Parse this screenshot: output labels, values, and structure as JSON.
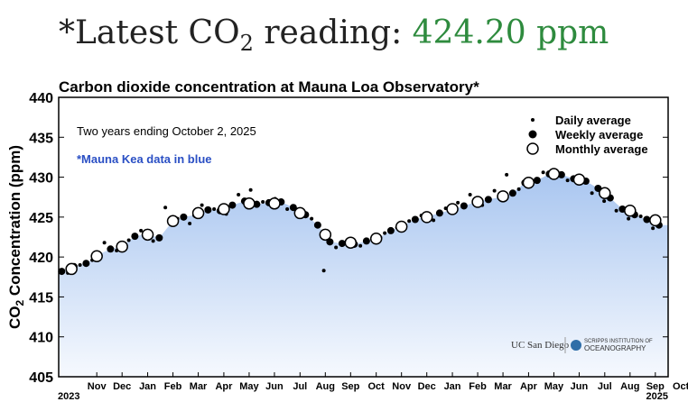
{
  "headline": {
    "prefix": "*Latest CO",
    "subscript": "2",
    "suffix": " reading: ",
    "value": "424.20 ppm"
  },
  "chart_data": {
    "type": "scatter",
    "title": "Carbon dioxide concentration at Mauna Loa Observatory*",
    "ylabel": {
      "prefix": "CO",
      "subscript": "2",
      "suffix": " Concentration (ppm)"
    },
    "annotations": [
      "Two years ending October 2, 2025",
      "*Mauna Kea data in blue"
    ],
    "logos": [
      "UC San Diego",
      "SCRIPPS INSTITUTION OF",
      "OCEANOGRAPHY"
    ],
    "year_labels": [
      "2023",
      "2025"
    ],
    "xlim": [
      2023.75,
      2025.75
    ],
    "ylim": [
      405,
      440
    ],
    "yticks": [
      405,
      410,
      415,
      420,
      425,
      430,
      435,
      440
    ],
    "xticks": [
      {
        "value": 2023.875,
        "label": "Nov"
      },
      {
        "value": 2023.958,
        "label": "Dec"
      },
      {
        "value": 2024.042,
        "label": "Jan"
      },
      {
        "value": 2024.125,
        "label": "Feb"
      },
      {
        "value": 2024.208,
        "label": "Mar"
      },
      {
        "value": 2024.292,
        "label": "Apr"
      },
      {
        "value": 2024.375,
        "label": "May"
      },
      {
        "value": 2024.458,
        "label": "Jun"
      },
      {
        "value": 2024.542,
        "label": "Jul"
      },
      {
        "value": 2024.625,
        "label": "Aug"
      },
      {
        "value": 2024.708,
        "label": "Sep"
      },
      {
        "value": 2024.792,
        "label": "Oct"
      },
      {
        "value": 2024.875,
        "label": "Nov"
      },
      {
        "value": 2024.958,
        "label": "Dec"
      },
      {
        "value": 2025.042,
        "label": "Jan"
      },
      {
        "value": 2025.125,
        "label": "Feb"
      },
      {
        "value": 2025.208,
        "label": "Mar"
      },
      {
        "value": 2025.292,
        "label": "Apr"
      },
      {
        "value": 2025.375,
        "label": "May"
      },
      {
        "value": 2025.458,
        "label": "Jun"
      },
      {
        "value": 2025.542,
        "label": "Jul"
      },
      {
        "value": 2025.625,
        "label": "Aug"
      },
      {
        "value": 2025.708,
        "label": "Sep"
      },
      {
        "value": 2025.792,
        "label": "Oct"
      }
    ],
    "area_color": "#a9c6f0",
    "legend": "top-right",
    "series": [
      {
        "name": "Daily average",
        "color": "#000000",
        "marker": "small-dot",
        "x": [
          2023.78,
          2023.82,
          2023.86,
          2023.9,
          2023.94,
          2023.98,
          2024.02,
          2024.06,
          2024.1,
          2024.14,
          2024.18,
          2024.22,
          2024.26,
          2024.3,
          2024.34,
          2024.38,
          2024.42,
          2024.46,
          2024.5,
          2024.54,
          2024.58,
          2024.62,
          2024.66,
          2024.7,
          2024.74,
          2024.78,
          2024.82,
          2024.86,
          2024.9,
          2024.94,
          2024.98,
          2025.02,
          2025.06,
          2025.1,
          2025.14,
          2025.18,
          2025.22,
          2025.26,
          2025.3,
          2025.34,
          2025.38,
          2025.42,
          2025.46,
          2025.5,
          2025.54,
          2025.58,
          2025.62,
          2025.66,
          2025.7
        ],
        "values": [
          418.0,
          419.0,
          419.6,
          421.8,
          420.8,
          422.1,
          423.3,
          422.0,
          426.2,
          424.8,
          424.2,
          426.5,
          426.0,
          425.4,
          427.8,
          428.4,
          426.9,
          427.3,
          426.0,
          425.8,
          424.8,
          418.3,
          421.2,
          421.9,
          421.4,
          422.3,
          423.0,
          423.7,
          424.5,
          425.2,
          424.6,
          426.1,
          426.8,
          427.8,
          426.5,
          428.3,
          430.3,
          428.5,
          429.1,
          430.6,
          430.8,
          429.6,
          430.2,
          428.0,
          427.0,
          425.8,
          424.8,
          425.1,
          423.6
        ]
      },
      {
        "name": "Weekly average",
        "color": "#000000",
        "marker": "dot",
        "x": [
          2023.76,
          2023.8,
          2023.84,
          2023.88,
          2023.92,
          2023.96,
          2024.0,
          2024.04,
          2024.08,
          2024.12,
          2024.16,
          2024.2,
          2024.24,
          2024.28,
          2024.32,
          2024.36,
          2024.4,
          2024.44,
          2024.48,
          2024.52,
          2024.56,
          2024.6,
          2024.64,
          2024.68,
          2024.72,
          2024.76,
          2024.8,
          2024.84,
          2024.88,
          2024.92,
          2024.96,
          2025.0,
          2025.04,
          2025.08,
          2025.12,
          2025.16,
          2025.2,
          2025.24,
          2025.28,
          2025.32,
          2025.36,
          2025.4,
          2025.44,
          2025.48,
          2025.52,
          2025.56,
          2025.6,
          2025.64,
          2025.68,
          2025.72
        ],
        "values": [
          418.2,
          418.8,
          419.2,
          420.3,
          421.0,
          421.4,
          422.6,
          422.9,
          422.4,
          424.3,
          425.0,
          425.3,
          425.9,
          425.8,
          426.5,
          427.0,
          426.6,
          426.8,
          426.9,
          426.2,
          425.3,
          424.0,
          421.9,
          421.7,
          421.6,
          422.0,
          422.4,
          423.3,
          424.0,
          424.7,
          425.1,
          425.5,
          425.9,
          426.4,
          426.9,
          427.2,
          427.5,
          428.0,
          429.3,
          429.6,
          430.4,
          430.3,
          429.8,
          429.5,
          428.6,
          427.4,
          426.0,
          425.3,
          424.7,
          424.0
        ]
      },
      {
        "name": "Monthly average",
        "color": "#000000",
        "marker": "open-circle",
        "x": [
          2023.792,
          2023.875,
          2023.958,
          2024.042,
          2024.125,
          2024.208,
          2024.292,
          2024.375,
          2024.458,
          2024.542,
          2024.625,
          2024.708,
          2024.792,
          2024.875,
          2024.958,
          2025.042,
          2025.125,
          2025.208,
          2025.292,
          2025.375,
          2025.458,
          2025.542,
          2025.625,
          2025.708
        ],
        "values": [
          418.5,
          420.1,
          421.3,
          422.8,
          424.5,
          425.5,
          426.0,
          426.7,
          426.7,
          425.5,
          422.8,
          421.8,
          422.3,
          423.8,
          425.0,
          426.0,
          426.9,
          427.6,
          429.3,
          430.4,
          429.7,
          428.0,
          425.8,
          424.6
        ]
      }
    ]
  }
}
